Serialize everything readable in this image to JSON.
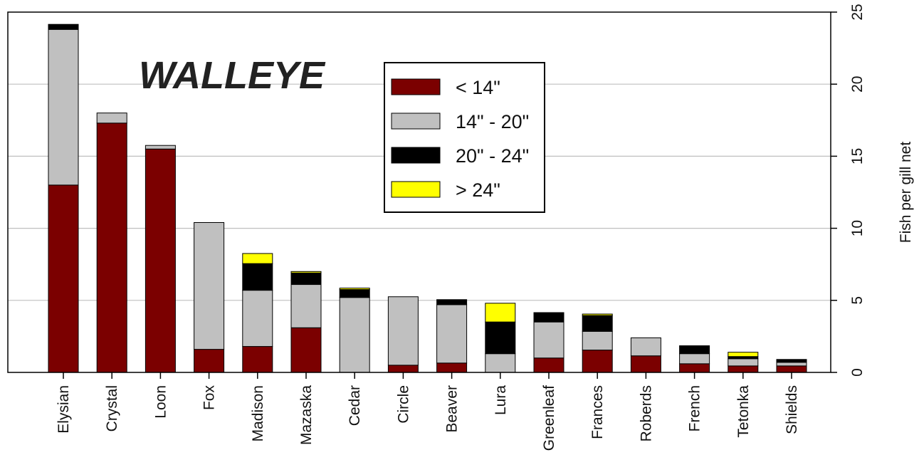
{
  "chart_data": {
    "type": "bar",
    "stacked": true,
    "title": "WALLEYE",
    "xlabel": "",
    "ylabel": "Fish per gill net",
    "y_axis_side": "right",
    "ylim": [
      0,
      25
    ],
    "yticks": [
      "0",
      "5",
      "10",
      "15",
      "20",
      "25"
    ],
    "grid": "horizontal",
    "legend_position": "top-center",
    "categories": [
      "Elysian",
      "Crystal",
      "Loon",
      "Fox",
      "Madison",
      "Mazaska",
      "Cedar",
      "Circle",
      "Beaver",
      "Lura",
      "Greenleaf",
      "Frances",
      "Roberds",
      "French",
      "Tetonka",
      "Shields"
    ],
    "series": [
      {
        "name": "< 14\"",
        "color": "#7b0000",
        "values": [
          13.0,
          17.3,
          15.5,
          1.6,
          1.8,
          3.1,
          0.0,
          0.5,
          0.65,
          0.0,
          1.0,
          1.55,
          1.15,
          0.6,
          0.45,
          0.45
        ]
      },
      {
        "name": "14\" - 20\"",
        "color": "#c0c0c0",
        "values": [
          10.8,
          0.7,
          0.25,
          8.8,
          3.9,
          3.0,
          5.2,
          4.75,
          4.05,
          1.3,
          2.5,
          1.3,
          1.25,
          0.7,
          0.5,
          0.25
        ]
      },
      {
        "name": "20\" - 24\"",
        "color": "#000000",
        "values": [
          0.35,
          0.0,
          0.0,
          0.0,
          1.85,
          0.8,
          0.55,
          0.0,
          0.35,
          2.2,
          0.65,
          1.1,
          0.0,
          0.55,
          0.15,
          0.2
        ]
      },
      {
        "name": "> 24\"",
        "color": "#ffff00",
        "values": [
          0.0,
          0.0,
          0.0,
          0.0,
          0.7,
          0.1,
          0.1,
          0.0,
          0.0,
          1.3,
          0.0,
          0.1,
          0.0,
          0.0,
          0.3,
          0.0
        ]
      }
    ]
  }
}
